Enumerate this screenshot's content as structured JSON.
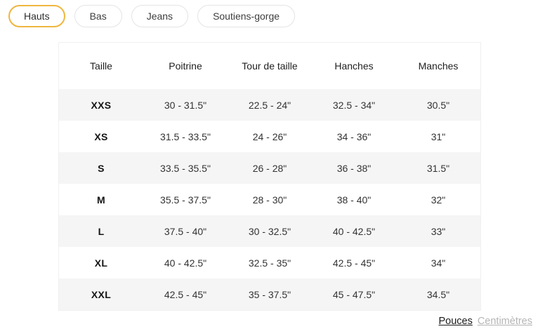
{
  "tabs": {
    "items": [
      {
        "label": "Hauts",
        "active": true
      },
      {
        "label": "Bas",
        "active": false
      },
      {
        "label": "Jeans",
        "active": false
      },
      {
        "label": "Soutiens-gorge",
        "active": false
      }
    ],
    "active_label": "Hauts"
  },
  "table": {
    "columns": [
      "Taille",
      "Poitrine",
      "Tour de taille",
      "Hanches",
      "Manches"
    ],
    "rows": [
      {
        "size": "XXS",
        "values": [
          "30 - 31.5\"",
          "22.5 - 24\"",
          "32.5 - 34\"",
          "30.5\""
        ]
      },
      {
        "size": "XS",
        "values": [
          "31.5 - 33.5\"",
          "24 - 26\"",
          "34 - 36\"",
          "31\""
        ]
      },
      {
        "size": "S",
        "values": [
          "33.5 - 35.5\"",
          "26 - 28\"",
          "36 - 38\"",
          "31.5\""
        ]
      },
      {
        "size": "M",
        "values": [
          "35.5 - 37.5\"",
          "28 - 30\"",
          "38 - 40\"",
          "32\""
        ]
      },
      {
        "size": "L",
        "values": [
          "37.5 - 40\"",
          "30 - 32.5\"",
          "40 - 42.5\"",
          "33\""
        ]
      },
      {
        "size": "XL",
        "values": [
          "40 - 42.5\"",
          "32.5 - 35\"",
          "42.5 - 45\"",
          "34\""
        ]
      },
      {
        "size": "XXL",
        "values": [
          "42.5 - 45\"",
          "35 - 37.5\"",
          "45 - 47.5\"",
          "34.5\""
        ]
      }
    ]
  },
  "unit_toggle": {
    "inches_label": "Pouces",
    "cm_label": "Centimètres",
    "selected": "Pouces"
  },
  "colors": {
    "accent_gold": "#efb63e",
    "stripe_gray": "#f5f5f5",
    "inactive_border": "#e4e4e4",
    "muted_text": "#b5b5b5"
  }
}
